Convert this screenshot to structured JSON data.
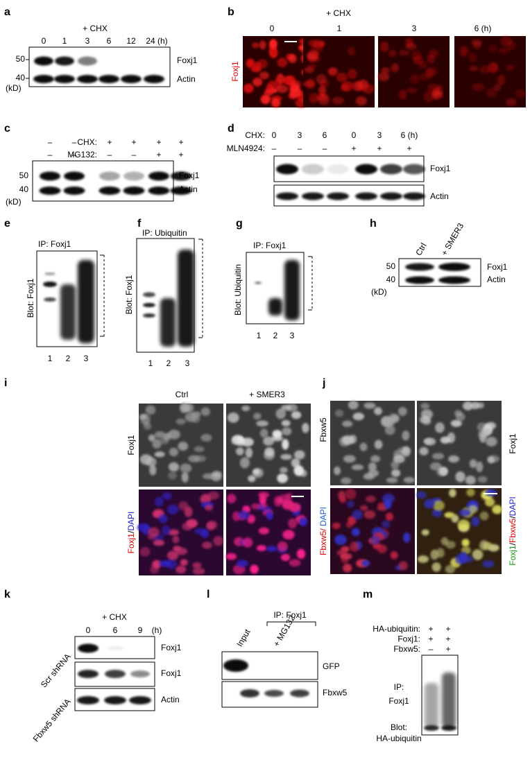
{
  "panels": {
    "a": {
      "label": "a",
      "treatment": "+ CHX",
      "lanes": [
        "0",
        "1",
        "3",
        "6",
        "12",
        "24 (h)"
      ],
      "markers": [
        "50",
        "40",
        "(kD)"
      ],
      "bands": [
        "Foxj1",
        "Actin"
      ]
    },
    "b": {
      "label": "b",
      "treatment": "+ CHX",
      "times": [
        "0",
        "1",
        "3",
        "6 (h)"
      ],
      "stain": "Foxj1"
    },
    "c": {
      "label": "c",
      "rows": [
        {
          "name": "CHX:",
          "signs": [
            "–",
            "–",
            "+",
            "+",
            "+",
            "+"
          ]
        },
        {
          "name": "MG132:",
          "signs": [
            "–",
            "–",
            "–",
            "–",
            "+",
            "+"
          ]
        }
      ],
      "markers": [
        "50",
        "40",
        "(kD)"
      ],
      "bands": [
        "Foxj1",
        "Actin"
      ]
    },
    "d": {
      "label": "d",
      "rows": [
        {
          "name": "CHX:",
          "signs": [
            "0",
            "3",
            "6",
            "0",
            "3",
            "6 (h)"
          ]
        },
        {
          "name": "MLN4924:",
          "signs": [
            "–",
            "–",
            "–",
            "+",
            "+",
            "+"
          ]
        }
      ],
      "bands": [
        "Foxj1",
        "Actin"
      ]
    },
    "e": {
      "label": "e",
      "ip": "IP: Foxj1",
      "blot": "Blot: Foxj1",
      "lanes": [
        "1",
        "2",
        "3"
      ]
    },
    "f": {
      "label": "f",
      "ip": "IP: Ubiquitin",
      "blot": "Blot: Foxj1",
      "lanes": [
        "1",
        "2",
        "3"
      ]
    },
    "g": {
      "label": "g",
      "ip": "IP: Foxj1",
      "blot": "Blot: Ubiquitin",
      "lanes": [
        "1",
        "2",
        "3"
      ]
    },
    "h": {
      "label": "h",
      "lanes": [
        "Ctrl",
        "+ SMER3"
      ],
      "markers": [
        "50",
        "40",
        "(kD)"
      ],
      "bands": [
        "Foxj1",
        "Actin"
      ]
    },
    "i": {
      "label": "i",
      "columns": [
        "Ctrl",
        "+ SMER3"
      ],
      "stain": "Foxj1",
      "merge": [
        "Foxj1",
        "/",
        "DAPI"
      ]
    },
    "j": {
      "label": "j",
      "left": "Fbxw5",
      "right": "Foxj1",
      "merge_left": [
        "Fbxw5/",
        " DAPI"
      ],
      "merge_right": [
        "Foxj1",
        "/",
        "Fbxw5",
        "/",
        "DAPI"
      ]
    },
    "k": {
      "label": "k",
      "treatment": "+ CHX",
      "times": [
        "0",
        "6",
        "9",
        "(h)"
      ],
      "rows": [
        "Scr shRNA",
        "Fbxw5 shRNA"
      ],
      "bands": [
        "Foxj1",
        "Foxj1",
        "Actin"
      ]
    },
    "l": {
      "label": "l",
      "ip": "IP: Foxj1",
      "lanes": [
        "Input",
        "+ MG132"
      ],
      "bands": [
        "GFP",
        "Fbxw5"
      ]
    },
    "m": {
      "label": "m",
      "rows": [
        {
          "name": "HA-ubiquitin:",
          "signs": [
            "+",
            "+"
          ]
        },
        {
          "name": "Foxj1:",
          "signs": [
            "+",
            "+"
          ]
        },
        {
          "name": "Fbxw5:",
          "signs": [
            "–",
            "+"
          ]
        }
      ],
      "ip": [
        "IP:",
        "Foxj1"
      ],
      "blot": [
        "Blot:",
        "HA-ubiquitin"
      ]
    }
  }
}
